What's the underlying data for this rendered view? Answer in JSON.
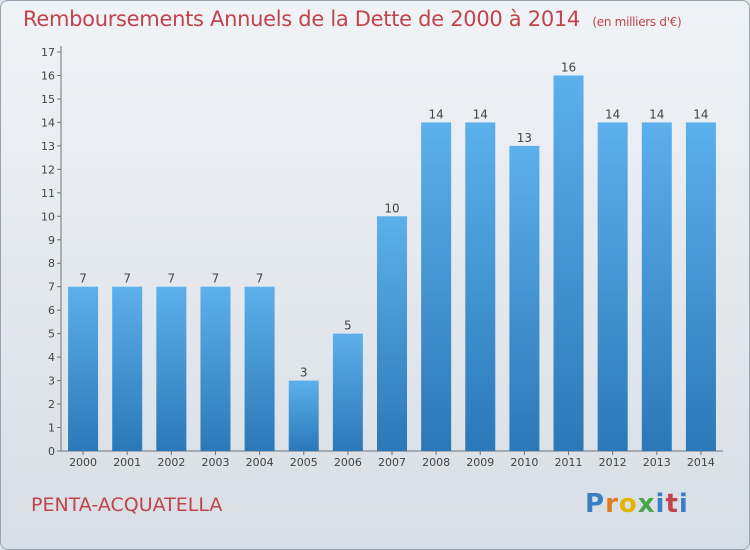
{
  "header": {
    "title": "Remboursements Annuels de la Dette de 2000 à 2014",
    "unit": "(en milliers d'€)"
  },
  "footer": {
    "commune": "PENTA-ACQUATELLA",
    "logo": "Proxiti"
  },
  "colors": {
    "title": "#c0444e",
    "bar_top": "#5cb0ec",
    "bar_bottom": "#2b78b8"
  },
  "chart_data": {
    "type": "bar",
    "title": "Remboursements Annuels de la Dette de 2000 à 2014",
    "categories": [
      "2000",
      "2001",
      "2002",
      "2003",
      "2004",
      "2005",
      "2006",
      "2007",
      "2008",
      "2009",
      "2010",
      "2011",
      "2012",
      "2013",
      "2014"
    ],
    "values": [
      7,
      7,
      7,
      7,
      7,
      3,
      5,
      10,
      14,
      14,
      13,
      16,
      14,
      14,
      14
    ],
    "ylim": [
      0,
      17
    ],
    "yticks": [
      0,
      1,
      2,
      3,
      4,
      5,
      6,
      7,
      8,
      9,
      10,
      11,
      12,
      13,
      14,
      15,
      16,
      17
    ],
    "grid": false
  }
}
